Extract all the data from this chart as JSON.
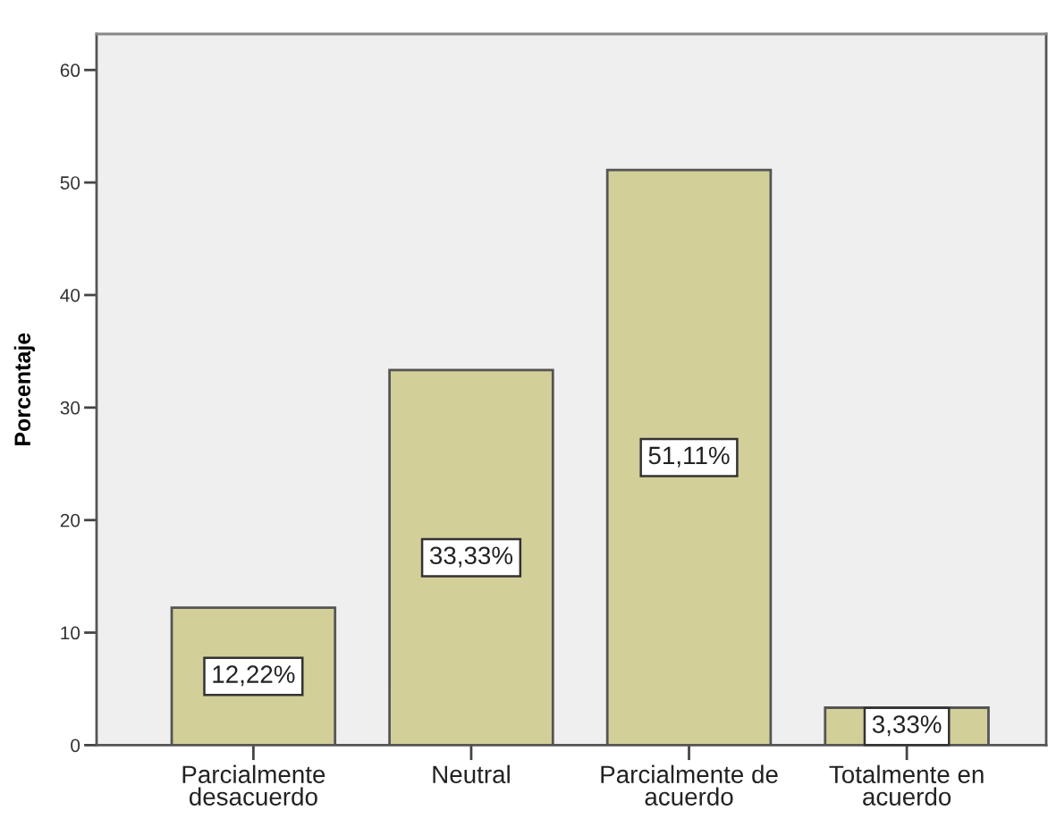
{
  "chart_data": {
    "type": "bar",
    "ylabel": "Porcentaje",
    "categories": [
      "Parcialmente\ndesacuerdo",
      "Neutral",
      "Parcialmente de\nacuerdo",
      "Totalmente en\nacuerdo"
    ],
    "values": [
      12.22,
      33.33,
      51.11,
      3.33
    ],
    "value_labels": [
      "12,22%",
      "33,33%",
      "51,11%",
      "3,33%"
    ],
    "color": "#d3cf98",
    "ylim": [
      0,
      63.2
    ],
    "yticks": [
      0,
      10,
      20,
      30,
      40,
      50,
      60
    ],
    "grid": false
  }
}
